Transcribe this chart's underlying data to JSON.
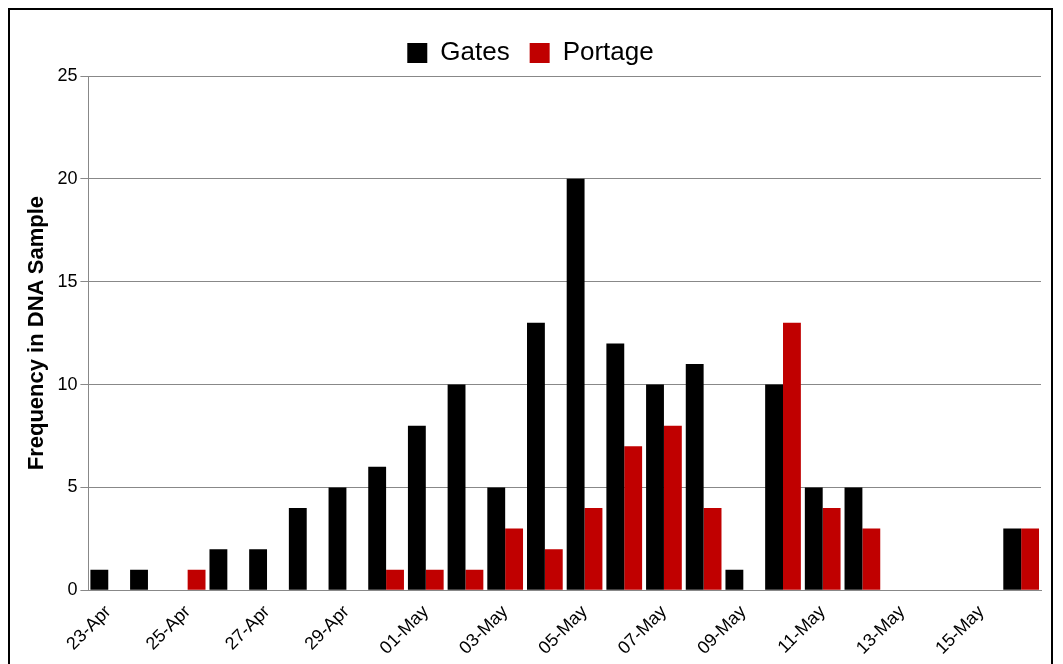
{
  "chart_data": {
    "type": "bar",
    "ylabel": "Frequency in DNA Sample",
    "categories": [
      "23-Apr",
      null,
      "25-Apr",
      null,
      "27-Apr",
      null,
      "29-Apr",
      null,
      "01-May",
      null,
      "03-May",
      null,
      "05-May",
      null,
      "07-May",
      null,
      "09-May",
      null,
      "11-May",
      null,
      "13-May",
      null,
      "15-May",
      null
    ],
    "series": [
      {
        "name": "Gates",
        "color": "#000000",
        "values": [
          1,
          1,
          0,
          2,
          2,
          4,
          5,
          6,
          8,
          10,
          5,
          13,
          20,
          12,
          10,
          11,
          1,
          10,
          5,
          5,
          0,
          0,
          0,
          3
        ]
      },
      {
        "name": "Portage",
        "color": "#c00000",
        "values": [
          0,
          0,
          1,
          0,
          0,
          0,
          0,
          1,
          1,
          1,
          3,
          2,
          4,
          7,
          8,
          4,
          0,
          13,
          4,
          3,
          0,
          0,
          0,
          3
        ]
      }
    ],
    "ylim": [
      0,
      25
    ],
    "yticks": [
      0,
      5,
      10,
      15,
      20,
      25
    ],
    "grid": "y",
    "legend": "top"
  }
}
